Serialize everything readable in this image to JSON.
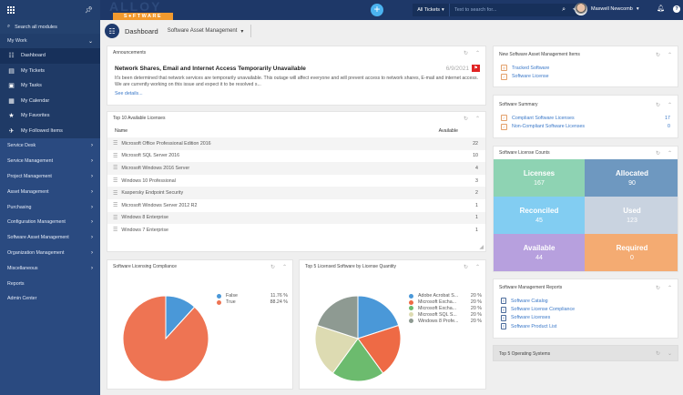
{
  "sidebar": {
    "search_placeholder": "Search all modules",
    "my_work": {
      "label": "My Work",
      "items": [
        {
          "label": "Dashboard",
          "icon": "dashboard-icon",
          "active": true
        },
        {
          "label": "My Tickets",
          "icon": "ticket-icon"
        },
        {
          "label": "My Tasks",
          "icon": "tasks-icon"
        },
        {
          "label": "My Calendar",
          "icon": "calendar-icon"
        },
        {
          "label": "My Favorites",
          "icon": "star-icon"
        },
        {
          "label": "My Followed Items",
          "icon": "follow-icon"
        }
      ]
    },
    "modules": [
      {
        "label": "Service Desk",
        "has_children": true
      },
      {
        "label": "Service Management",
        "has_children": true
      },
      {
        "label": "Project Management",
        "has_children": true
      },
      {
        "label": "Asset Management",
        "has_children": true
      },
      {
        "label": "Purchasing",
        "has_children": true
      },
      {
        "label": "Configuration Management",
        "has_children": true
      },
      {
        "label": "Software Asset Management",
        "has_children": true
      },
      {
        "label": "Organization Management",
        "has_children": true
      },
      {
        "label": "Miscellaneous",
        "has_children": true
      },
      {
        "label": "Reports",
        "has_children": false
      },
      {
        "label": "Admin Center",
        "has_children": false
      }
    ]
  },
  "topbar": {
    "logo_top": "ALLOY",
    "logo_bottom": "S●FTWARE",
    "ticket_scope": "All Tickets",
    "search_placeholder": "Text to search for...",
    "user_name": "Maxwell Newcomb"
  },
  "header": {
    "title": "Dashboard",
    "dashboard_select": "Software Asset Management"
  },
  "announcements": {
    "title": "Announcements",
    "headline": "Network Shares, Email and Internet Access Temporarily Unavailable",
    "date": "6/9/2021",
    "body": "It's been determined that network services are temporarily unavailable. This outage will affect everyone and will prevent access to network shares, E-mail and internet access. We are currently working on this issue and expect it to be resolved s...",
    "link": "See details..."
  },
  "top_licenses": {
    "title": "Top 10 Available Licenses",
    "columns": [
      "Name",
      "Available"
    ],
    "rows": [
      {
        "name": "Microsoft Office Professional Edition 2016",
        "available": "22"
      },
      {
        "name": "Microsoft SQL Server 2016",
        "available": "10"
      },
      {
        "name": "Microsoft Windows 2016 Server",
        "available": "4"
      },
      {
        "name": "Windows 10 Professional",
        "available": "3"
      },
      {
        "name": "Kaspersky Endpoint Security",
        "available": "2"
      },
      {
        "name": "Microsoft Windows Server 2012 R2",
        "available": "1"
      },
      {
        "name": "Windows 8 Enterprise",
        "available": "1"
      },
      {
        "name": "Windows 7 Enterprise",
        "available": "1"
      }
    ]
  },
  "compliance": {
    "title": "Software Licensing Compliance"
  },
  "top5": {
    "title": "Top 5 Licensed Software by License Quantity"
  },
  "chart_data": [
    {
      "type": "pie",
      "title": "Software Licensing Compliance",
      "legend": "right",
      "slices": [
        {
          "label": "False",
          "value": 11.76,
          "display": "11.76 %",
          "color": "#4a98d8"
        },
        {
          "label": "True",
          "value": 88.24,
          "display": "88.24 %",
          "color": "#ee7453"
        }
      ]
    },
    {
      "type": "pie",
      "title": "Top 5 Licensed Software by License Quantity",
      "legend": "right",
      "slices": [
        {
          "label": "Adobe Acrobat S...",
          "value": 20,
          "display": "20 %",
          "color": "#4a98d8"
        },
        {
          "label": "Microsoft Excha...",
          "value": 20,
          "display": "20 %",
          "color": "#ee6a45"
        },
        {
          "label": "Microsoft Excha...",
          "value": 20,
          "display": "20 %",
          "color": "#6cbb6e"
        },
        {
          "label": "Microsoft SQL S...",
          "value": 20,
          "display": "20 %",
          "color": "#dddbb2"
        },
        {
          "label": "Windows 8 Profe...",
          "value": 20,
          "display": "20 %",
          "color": "#8e9a92"
        }
      ]
    }
  ],
  "new_items": {
    "title": "New Software Asset Management Items",
    "links": [
      "Tracked Software",
      "Software License"
    ]
  },
  "summary": {
    "title": "Software Summary",
    "rows": [
      {
        "label": "Compliant Software Licenses",
        "value": "17"
      },
      {
        "label": "Non-Compliant Software Licenses",
        "value": "0"
      }
    ]
  },
  "license_counts": {
    "title": "Software License Counts",
    "tiles": [
      {
        "label": "Licenses",
        "value": "167",
        "color": "#8ed3b3"
      },
      {
        "label": "Allocated",
        "value": "90",
        "color": "#6e98c0"
      },
      {
        "label": "Reconciled",
        "value": "45",
        "color": "#82cdf2"
      },
      {
        "label": "Used",
        "value": "123",
        "color": "#c9d3e0"
      },
      {
        "label": "Available",
        "value": "44",
        "color": "#b7a0de"
      },
      {
        "label": "Required",
        "value": "0",
        "color": "#f4ab72"
      }
    ]
  },
  "reports": {
    "title": "Software Management Reports",
    "links": [
      "Software Catalog",
      "Software License Compliance",
      "Software Licenses",
      "Software Product List"
    ]
  },
  "operating_systems": {
    "title": "Top 5 Operating Systems"
  }
}
